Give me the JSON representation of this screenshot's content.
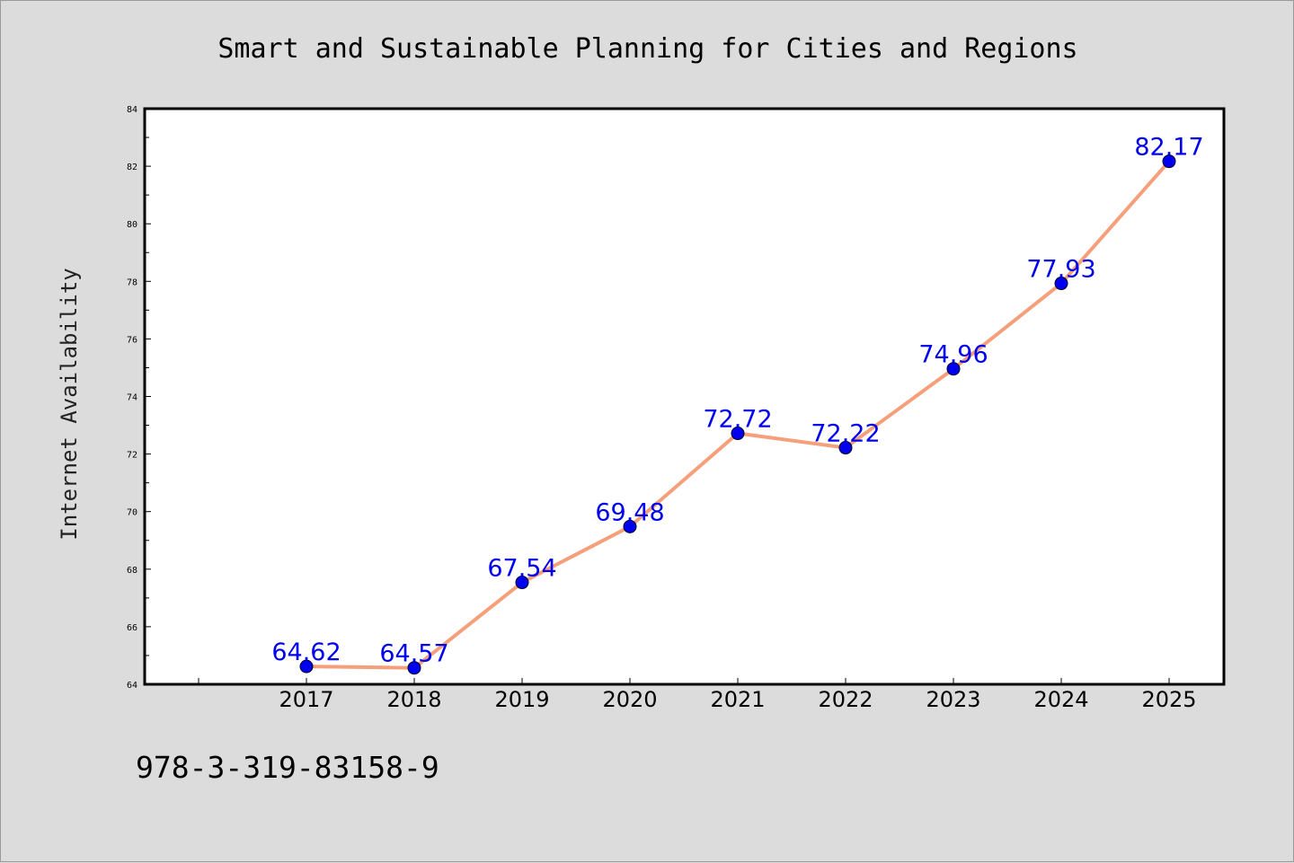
{
  "page": {
    "background": "#dcdcdc"
  },
  "footer": {
    "isbn": "978-3-319-83158-9"
  },
  "chart_data": {
    "type": "line",
    "title": "Smart and Sustainable Planning for Cities and Regions",
    "xlabel": "",
    "ylabel": "Internet Availability",
    "categories": [
      "2017",
      "2018",
      "2019",
      "2020",
      "2021",
      "2022",
      "2023",
      "2024",
      "2025"
    ],
    "series": [
      {
        "values": [
          64.62,
          64.57,
          67.54,
          69.48,
          72.72,
          72.22,
          74.96,
          77.93,
          82.17
        ],
        "labels": [
          "64.62",
          "64.57",
          "67.54",
          "69.48",
          "72.72",
          "72.22",
          "74.96",
          "77.93",
          "82.17"
        ],
        "line_color": "#f5a07a",
        "marker_color": "#0000ee",
        "label_color": "#0000ee"
      }
    ],
    "ylim": [
      64,
      84
    ],
    "yticks": [
      "64",
      "66",
      "68",
      "70",
      "72",
      "74",
      "76",
      "78",
      "80",
      "82",
      "84"
    ],
    "grid": false,
    "legend": "none"
  }
}
